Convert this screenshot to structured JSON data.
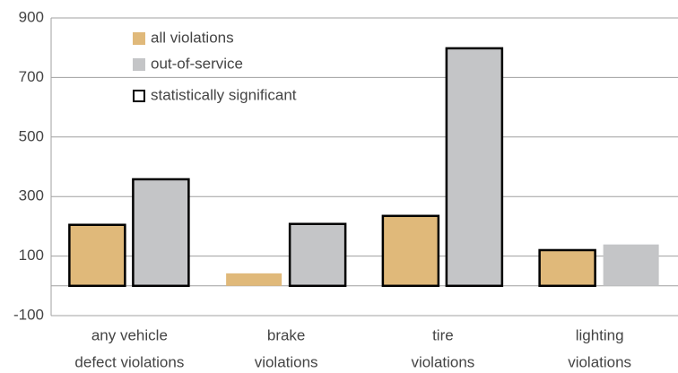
{
  "chart_data": {
    "type": "bar",
    "categories": [
      [
        "any vehicle",
        "defect violations"
      ],
      [
        "brake",
        "violations"
      ],
      [
        "tire",
        "violations"
      ],
      [
        "lighting",
        "violations"
      ]
    ],
    "series": [
      {
        "name": "all violations",
        "color": "#e0b97a",
        "values": [
          205,
          42,
          235,
          120
        ],
        "significant": [
          true,
          false,
          true,
          true
        ]
      },
      {
        "name": "out-of-service",
        "color": "#c4c5c7",
        "values": [
          358,
          208,
          798,
          139
        ],
        "significant": [
          true,
          true,
          true,
          false
        ]
      }
    ],
    "significance_label": "statistically significant",
    "ylim": [
      -100,
      900
    ],
    "yticks": [
      -100,
      100,
      300,
      500,
      700,
      900
    ],
    "grid": true
  }
}
